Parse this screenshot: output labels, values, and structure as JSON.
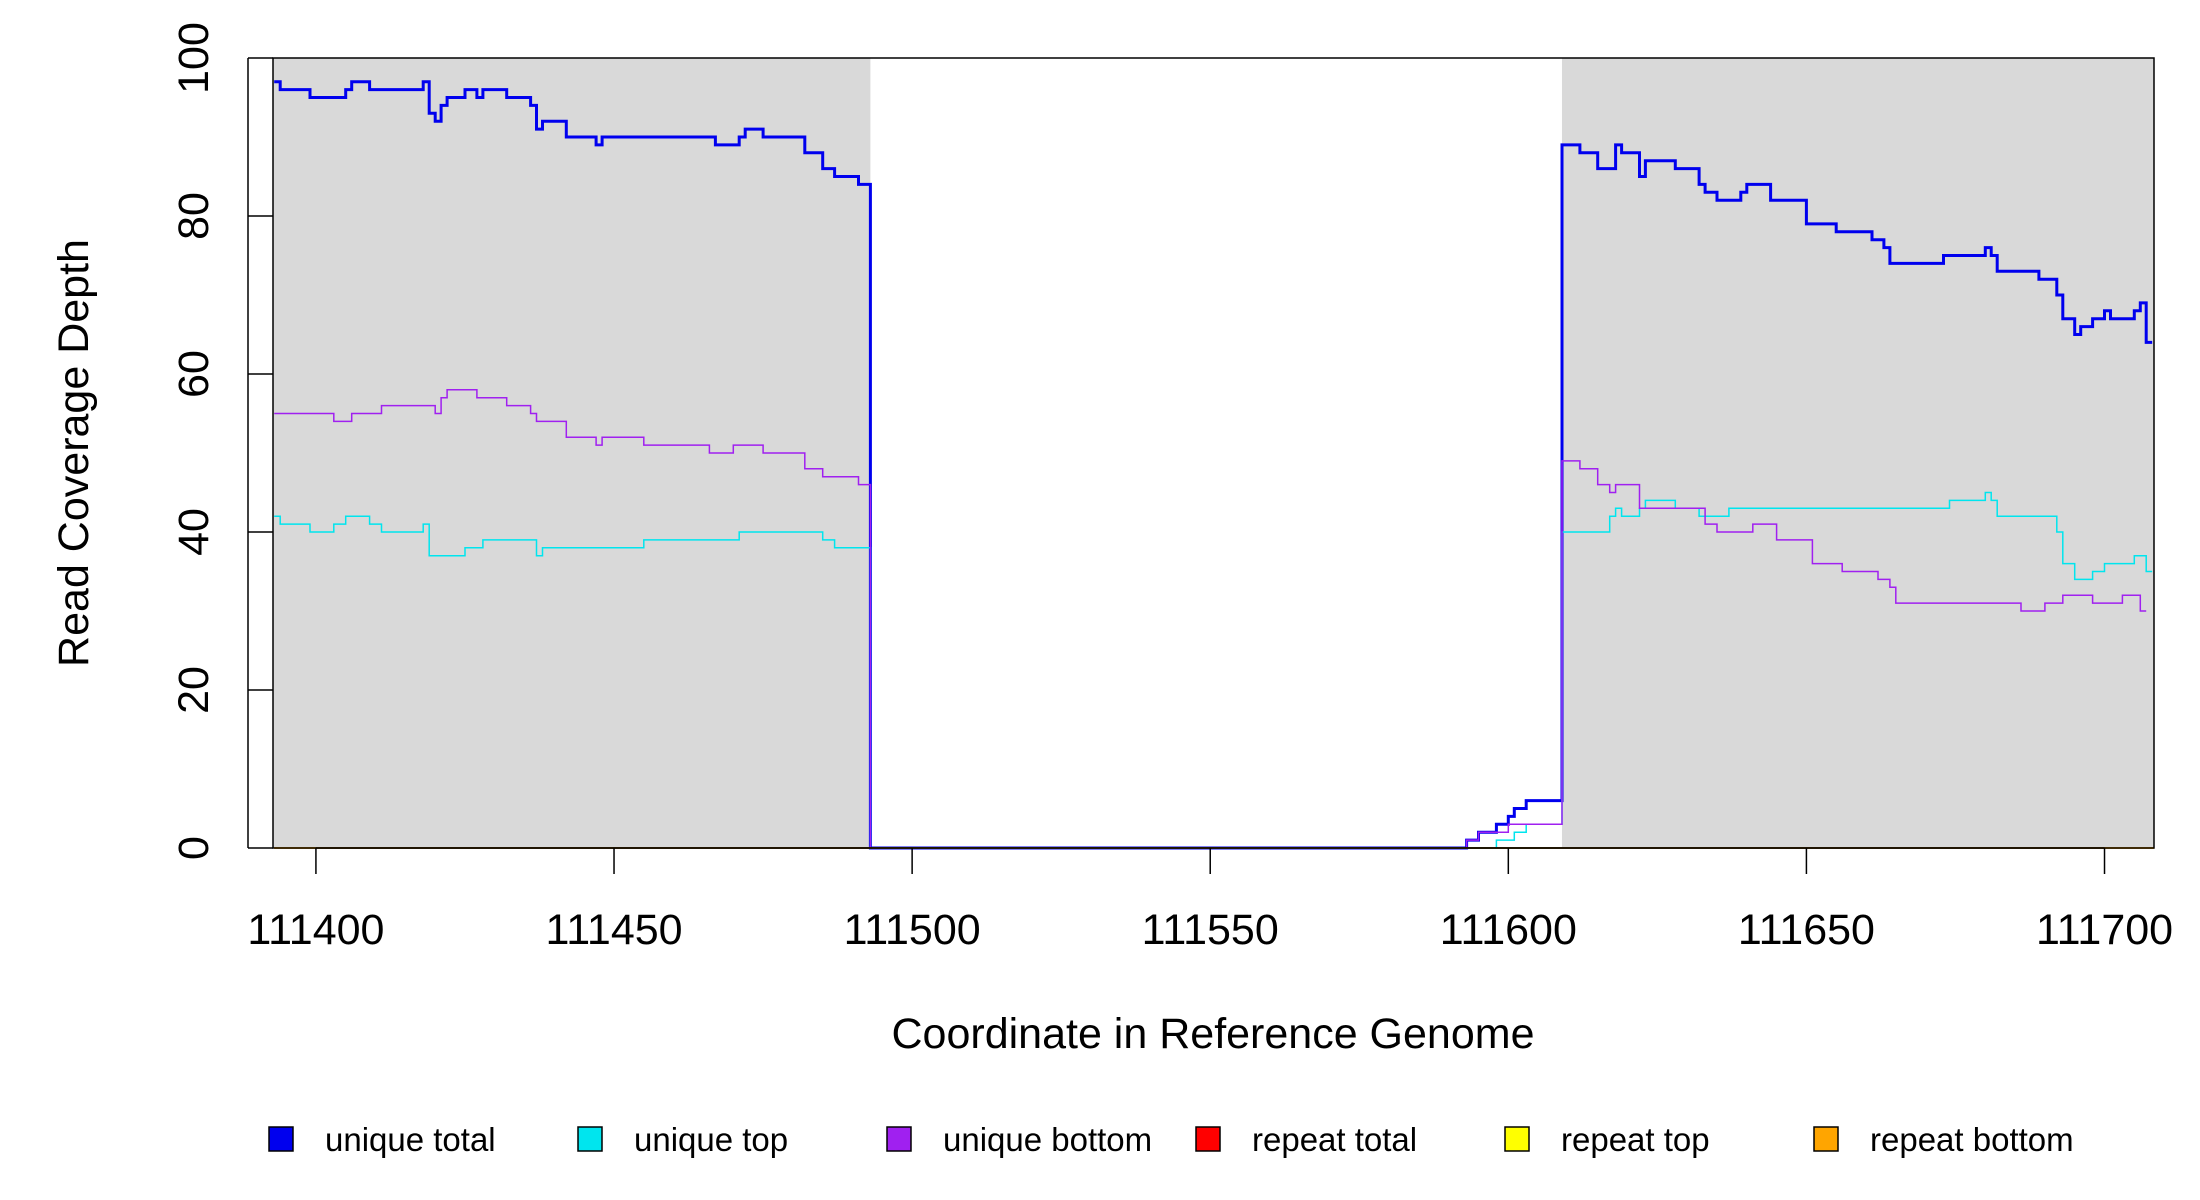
{
  "chart_data": {
    "type": "line",
    "step": true,
    "xlabel": "Coordinate in Reference Genome",
    "ylabel": "Read Coverage Depth",
    "xlim": [
      111392.8,
      111708.3
    ],
    "ylim": [
      0,
      100
    ],
    "xticks": [
      111400,
      111450,
      111500,
      111550,
      111600,
      111650,
      111700
    ],
    "yticks": [
      0,
      20,
      40,
      60,
      80,
      100
    ],
    "shaded_regions": [
      {
        "from": 111392.8,
        "to": 111493,
        "color": "#d9d9d9"
      },
      {
        "from": 111609,
        "to": 111708.3,
        "color": "#d9d9d9"
      }
    ],
    "legend_position": "bottom",
    "series": [
      {
        "name": "unique total",
        "color": "#0000ee",
        "width": 3,
        "points": [
          [
            111393,
            97
          ],
          [
            111394,
            96
          ],
          [
            111399,
            95
          ],
          [
            111405,
            96
          ],
          [
            111406,
            97
          ],
          [
            111409,
            96
          ],
          [
            111418,
            97
          ],
          [
            111419,
            93
          ],
          [
            111420,
            92
          ],
          [
            111421,
            94
          ],
          [
            111422,
            95
          ],
          [
            111425,
            96
          ],
          [
            111427,
            95
          ],
          [
            111428,
            96
          ],
          [
            111432,
            95
          ],
          [
            111436,
            94
          ],
          [
            111437,
            91
          ],
          [
            111438,
            92
          ],
          [
            111442,
            90
          ],
          [
            111447,
            89
          ],
          [
            111448,
            90
          ],
          [
            111467,
            89
          ],
          [
            111471,
            90
          ],
          [
            111472,
            91
          ],
          [
            111475,
            90
          ],
          [
            111482,
            88
          ],
          [
            111485,
            86
          ],
          [
            111487,
            85
          ],
          [
            111491,
            84
          ],
          [
            111493,
            0
          ],
          [
            111593,
            1
          ],
          [
            111595,
            2
          ],
          [
            111598,
            3
          ],
          [
            111600,
            4
          ],
          [
            111601,
            5
          ],
          [
            111603,
            6
          ],
          [
            111609,
            89
          ],
          [
            111612,
            88
          ],
          [
            111615,
            86
          ],
          [
            111618,
            89
          ],
          [
            111619,
            88
          ],
          [
            111622,
            85
          ],
          [
            111623,
            87
          ],
          [
            111628,
            86
          ],
          [
            111632,
            84
          ],
          [
            111633,
            83
          ],
          [
            111635,
            82
          ],
          [
            111639,
            83
          ],
          [
            111640,
            84
          ],
          [
            111644,
            82
          ],
          [
            111650,
            79
          ],
          [
            111655,
            78
          ],
          [
            111661,
            77
          ],
          [
            111663,
            76
          ],
          [
            111664,
            74
          ],
          [
            111673,
            75
          ],
          [
            111680,
            76
          ],
          [
            111681,
            75
          ],
          [
            111682,
            73
          ],
          [
            111689,
            72
          ],
          [
            111692,
            70
          ],
          [
            111693,
            67
          ],
          [
            111695,
            65
          ],
          [
            111696,
            66
          ],
          [
            111698,
            67
          ],
          [
            111700,
            68
          ],
          [
            111701,
            67
          ],
          [
            111705,
            68
          ],
          [
            111706,
            69
          ],
          [
            111707,
            64
          ]
        ]
      },
      {
        "name": "unique top",
        "color": "#00e5ee",
        "width": 1.5,
        "points": [
          [
            111393,
            42
          ],
          [
            111394,
            41
          ],
          [
            111399,
            40
          ],
          [
            111403,
            41
          ],
          [
            111405,
            42
          ],
          [
            111409,
            41
          ],
          [
            111411,
            40
          ],
          [
            111418,
            41
          ],
          [
            111419,
            37
          ],
          [
            111425,
            38
          ],
          [
            111428,
            39
          ],
          [
            111437,
            37
          ],
          [
            111438,
            38
          ],
          [
            111455,
            39
          ],
          [
            111471,
            40
          ],
          [
            111485,
            39
          ],
          [
            111487,
            38
          ],
          [
            111493,
            0
          ],
          [
            111598,
            1
          ],
          [
            111601,
            2
          ],
          [
            111603,
            3
          ],
          [
            111609,
            40
          ],
          [
            111617,
            42
          ],
          [
            111618,
            43
          ],
          [
            111619,
            42
          ],
          [
            111622,
            43
          ],
          [
            111623,
            44
          ],
          [
            111628,
            43
          ],
          [
            111632,
            42
          ],
          [
            111637,
            43
          ],
          [
            111674,
            44
          ],
          [
            111680,
            45
          ],
          [
            111681,
            44
          ],
          [
            111682,
            42
          ],
          [
            111692,
            40
          ],
          [
            111693,
            36
          ],
          [
            111695,
            34
          ],
          [
            111698,
            35
          ],
          [
            111700,
            36
          ],
          [
            111705,
            37
          ],
          [
            111707,
            35
          ]
        ]
      },
      {
        "name": "unique bottom",
        "color": "#a020f0",
        "width": 1.5,
        "points": [
          [
            111393,
            55
          ],
          [
            111403,
            54
          ],
          [
            111406,
            55
          ],
          [
            111411,
            56
          ],
          [
            111420,
            55
          ],
          [
            111421,
            57
          ],
          [
            111422,
            58
          ],
          [
            111427,
            57
          ],
          [
            111432,
            56
          ],
          [
            111436,
            55
          ],
          [
            111437,
            54
          ],
          [
            111442,
            52
          ],
          [
            111447,
            51
          ],
          [
            111448,
            52
          ],
          [
            111455,
            51
          ],
          [
            111466,
            50
          ],
          [
            111470,
            51
          ],
          [
            111475,
            50
          ],
          [
            111482,
            48
          ],
          [
            111485,
            47
          ],
          [
            111491,
            46
          ],
          [
            111493,
            0
          ],
          [
            111593,
            1
          ],
          [
            111595,
            2
          ],
          [
            111600,
            3
          ],
          [
            111609,
            49
          ],
          [
            111612,
            48
          ],
          [
            111615,
            46
          ],
          [
            111617,
            45
          ],
          [
            111618,
            46
          ],
          [
            111622,
            43
          ],
          [
            111633,
            41
          ],
          [
            111635,
            40
          ],
          [
            111641,
            41
          ],
          [
            111645,
            39
          ],
          [
            111651,
            36
          ],
          [
            111656,
            35
          ],
          [
            111662,
            34
          ],
          [
            111664,
            33
          ],
          [
            111665,
            31
          ],
          [
            111682,
            31
          ],
          [
            111686,
            30
          ],
          [
            111690,
            31
          ],
          [
            111693,
            32
          ],
          [
            111698,
            31
          ],
          [
            111703,
            32
          ],
          [
            111706,
            30
          ]
        ]
      },
      {
        "name": "repeat total",
        "color": "#ff0000",
        "width": 1.5,
        "points": [
          [
            111393,
            0
          ],
          [
            111708,
            0
          ]
        ]
      },
      {
        "name": "repeat top",
        "color": "#ffff00",
        "width": 1.5,
        "points": [
          [
            111393,
            0
          ],
          [
            111708,
            0
          ]
        ]
      },
      {
        "name": "repeat bottom",
        "color": "#ffa500",
        "width": 1.5,
        "points": [
          [
            111393,
            0
          ],
          [
            111708,
            0
          ]
        ]
      }
    ]
  }
}
